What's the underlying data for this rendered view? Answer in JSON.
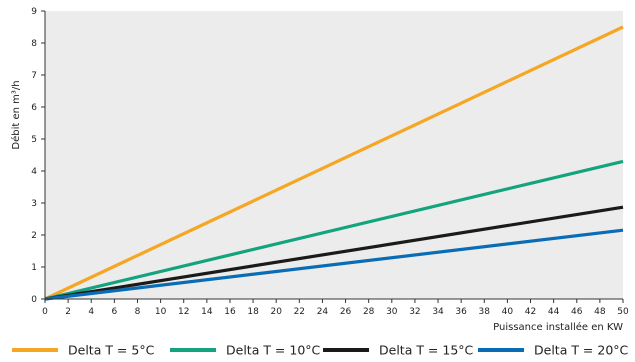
{
  "chart_data": {
    "type": "line",
    "xlabel": "Puissance installée en KW",
    "ylabel": "Débit en m³/h",
    "xlim": [
      0,
      50
    ],
    "ylim": [
      0,
      9
    ],
    "xticks": [
      0,
      2,
      4,
      6,
      8,
      10,
      12,
      14,
      16,
      18,
      20,
      22,
      24,
      26,
      28,
      30,
      32,
      34,
      36,
      38,
      40,
      42,
      44,
      46,
      48,
      50
    ],
    "yticks": [
      0,
      1,
      2,
      3,
      4,
      5,
      6,
      7,
      8,
      9
    ],
    "grid": false,
    "legend_position": "bottom",
    "series": [
      {
        "name": "Delta T = 5°C",
        "color": "#f5a623",
        "x": [
          0,
          50
        ],
        "y": [
          0,
          8.5
        ]
      },
      {
        "name": "Delta T = 10°C",
        "color": "#14a37f",
        "x": [
          0,
          50
        ],
        "y": [
          0,
          4.3
        ]
      },
      {
        "name": "Delta T = 15°C",
        "color": "#1a1a1a",
        "x": [
          0,
          50
        ],
        "y": [
          0,
          2.87
        ]
      },
      {
        "name": "Delta T = 20°C",
        "color": "#0a6cb5",
        "x": [
          0,
          50
        ],
        "y": [
          0,
          2.15
        ]
      }
    ]
  },
  "colors": {
    "plot_background": "#ececec"
  }
}
